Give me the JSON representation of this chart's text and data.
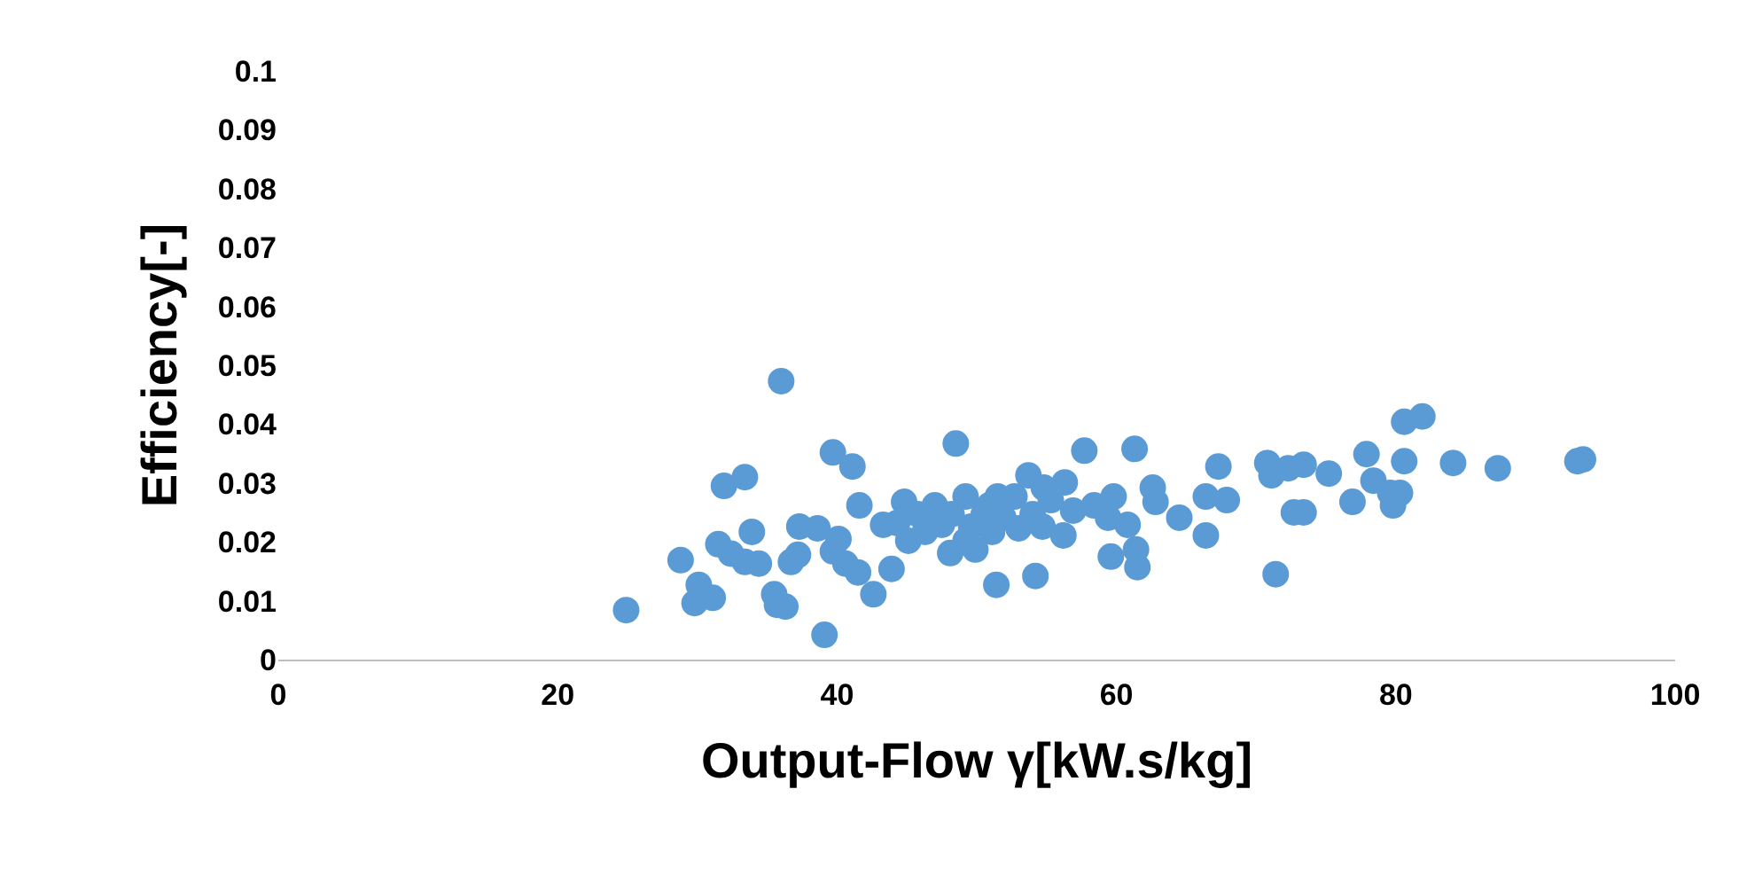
{
  "chart_data": {
    "type": "scatter",
    "xlabel": "Output-Flow γ[kW.s/kg]",
    "ylabel": "Efficiency[-]",
    "xlim": [
      0,
      100
    ],
    "xticks": [
      0,
      20,
      40,
      60,
      80,
      100
    ],
    "ylim": [
      0,
      0.1
    ],
    "yticks": [
      0,
      0.01,
      0.02,
      0.03,
      0.04,
      0.05,
      0.06,
      0.07,
      0.08,
      0.09,
      0.1
    ],
    "grid": false,
    "marker": "circle",
    "series": [
      {
        "color": "#5b9bd5",
        "x": [
          24.9,
          28.8,
          30.1,
          29.8,
          31.1,
          31.5,
          31.9,
          33.4,
          32.4,
          33.4,
          34.4,
          33.9,
          35.7,
          35.5,
          36.3,
          36.0,
          36.7,
          37.3,
          37.2,
          38.6,
          39.1,
          39.7,
          41.1,
          40.1,
          39.7,
          40.6,
          41.5,
          41.6,
          42.6,
          43.3,
          43.9,
          44.8,
          44.3,
          45.1,
          45.8,
          46.3,
          47.0,
          47.5,
          48.1,
          48.5,
          48.2,
          49.2,
          49.6,
          49.9,
          50.5,
          51.1,
          51.4,
          51.9,
          52.7,
          53.0,
          53.7,
          54.0,
          54.2,
          54.7,
          55.3,
          56.3,
          56.2,
          56.9,
          57.7,
          58.4,
          59.4,
          59.8,
          59.6,
          60.8,
          61.3,
          61.5,
          61.4,
          62.6,
          62.8,
          64.5,
          66.4,
          66.4,
          67.3,
          67.9,
          70.8,
          71.1,
          71.4,
          72.3,
          72.7,
          73.4,
          73.4,
          75.2,
          76.9,
          77.9,
          78.4,
          79.6,
          79.8,
          80.6,
          81.9,
          80.6,
          80.3,
          84.1,
          87.3,
          93.0,
          93.4,
          50.9,
          49.2,
          54.8,
          51.5
        ],
        "values": [
          0.0084,
          0.0169,
          0.0127,
          0.0096,
          0.0105,
          0.0196,
          0.0295,
          0.031,
          0.018,
          0.0166,
          0.0163,
          0.0217,
          0.0093,
          0.0111,
          0.009,
          0.0473,
          0.0166,
          0.0226,
          0.0178,
          0.0223,
          0.0042,
          0.0352,
          0.0328,
          0.0205,
          0.0184,
          0.0163,
          0.0148,
          0.0262,
          0.0111,
          0.0229,
          0.0154,
          0.0268,
          0.0232,
          0.0202,
          0.0247,
          0.0217,
          0.0262,
          0.0229,
          0.0181,
          0.0367,
          0.0247,
          0.0277,
          0.0226,
          0.0187,
          0.0247,
          0.0217,
          0.0127,
          0.0241,
          0.0277,
          0.0223,
          0.0313,
          0.0247,
          0.0142,
          0.0226,
          0.0271,
          0.0301,
          0.0211,
          0.0253,
          0.0355,
          0.0262,
          0.0241,
          0.0277,
          0.0175,
          0.0229,
          0.0358,
          0.0157,
          0.0187,
          0.0292,
          0.0268,
          0.0241,
          0.0277,
          0.0211,
          0.0328,
          0.0271,
          0.0334,
          0.0313,
          0.0145,
          0.0325,
          0.025,
          0.025,
          0.0331,
          0.0316,
          0.0268,
          0.0349,
          0.0304,
          0.0283,
          0.0262,
          0.0404,
          0.0413,
          0.0337,
          0.0283,
          0.0334,
          0.0325,
          0.0337,
          0.034,
          0.0262,
          0.0202,
          0.0292,
          0.0277
        ]
      }
    ]
  }
}
